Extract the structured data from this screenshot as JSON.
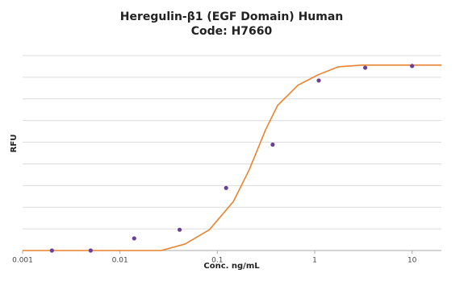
{
  "chart_data": {
    "type": "scatter",
    "title": [
      "Heregulin-β1 (EGF Domain) Human",
      "Code: H7660"
    ],
    "x_label": "Conc. ng/mL",
    "y_label": "RFU",
    "xscale": "log",
    "xlim": [
      0.001,
      20
    ],
    "xticks": [
      0.001,
      0.01,
      0.1,
      1,
      10
    ],
    "ylim": [
      0,
      9
    ],
    "grid": true,
    "points": {
      "color": "#6b3f91",
      "x": [
        0.002,
        0.005,
        0.014,
        0.041,
        0.123,
        0.37,
        1.1,
        3.3,
        10
      ],
      "values": [
        0,
        0,
        0.56,
        0.96,
        2.89,
        4.89,
        7.85,
        8.44,
        8.52
      ]
    },
    "fit": {
      "color": "#e8842f",
      "x": [
        0.001,
        0.0265,
        0.0466,
        0.0828,
        0.146,
        0.213,
        0.314,
        0.416,
        0.672,
        1.08,
        1.74,
        3.05,
        20
      ],
      "values": [
        0,
        0,
        0.3,
        0.96,
        2.26,
        3.74,
        5.59,
        6.7,
        7.63,
        8.11,
        8.48,
        8.56,
        8.56
      ]
    }
  }
}
